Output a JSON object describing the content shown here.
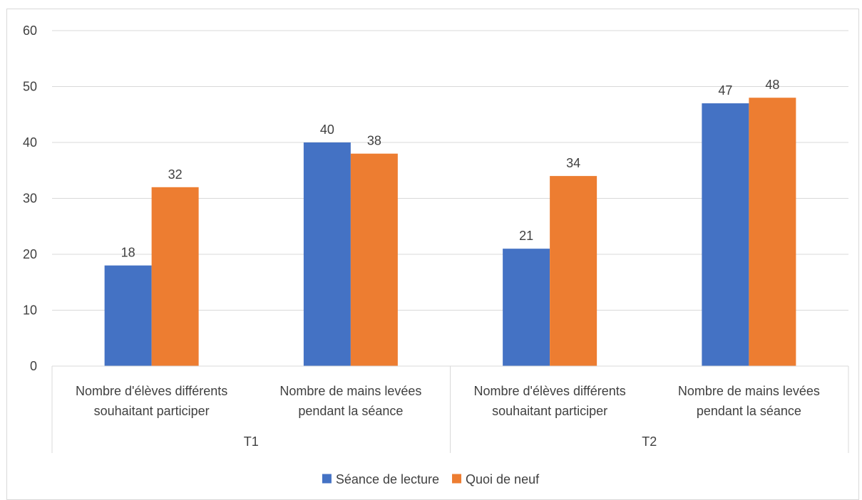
{
  "chart_data": {
    "type": "bar",
    "groups": [
      {
        "label": "T1",
        "categories": [
          {
            "line1": "Nombre d'élèves différents",
            "line2": "souhaitant participer"
          },
          {
            "line1": "Nombre de mains levées",
            "line2": "pendant la séance"
          }
        ]
      },
      {
        "label": "T2",
        "categories": [
          {
            "line1": "Nombre d'élèves différents",
            "line2": "souhaitant participer"
          },
          {
            "line1": "Nombre de mains levées",
            "line2": "pendant la séance"
          }
        ]
      }
    ],
    "series": [
      {
        "name": "Séance de lecture",
        "color": "#4472c4",
        "values": [
          18,
          40,
          21,
          47
        ]
      },
      {
        "name": "Quoi de neuf",
        "color": "#ed7d31",
        "values": [
          32,
          38,
          34,
          48
        ]
      }
    ],
    "ylim": [
      0,
      60
    ],
    "yticks": [
      0,
      10,
      20,
      30,
      40,
      50,
      60
    ],
    "grid": true,
    "legend": "bottom",
    "data_labels": true
  }
}
